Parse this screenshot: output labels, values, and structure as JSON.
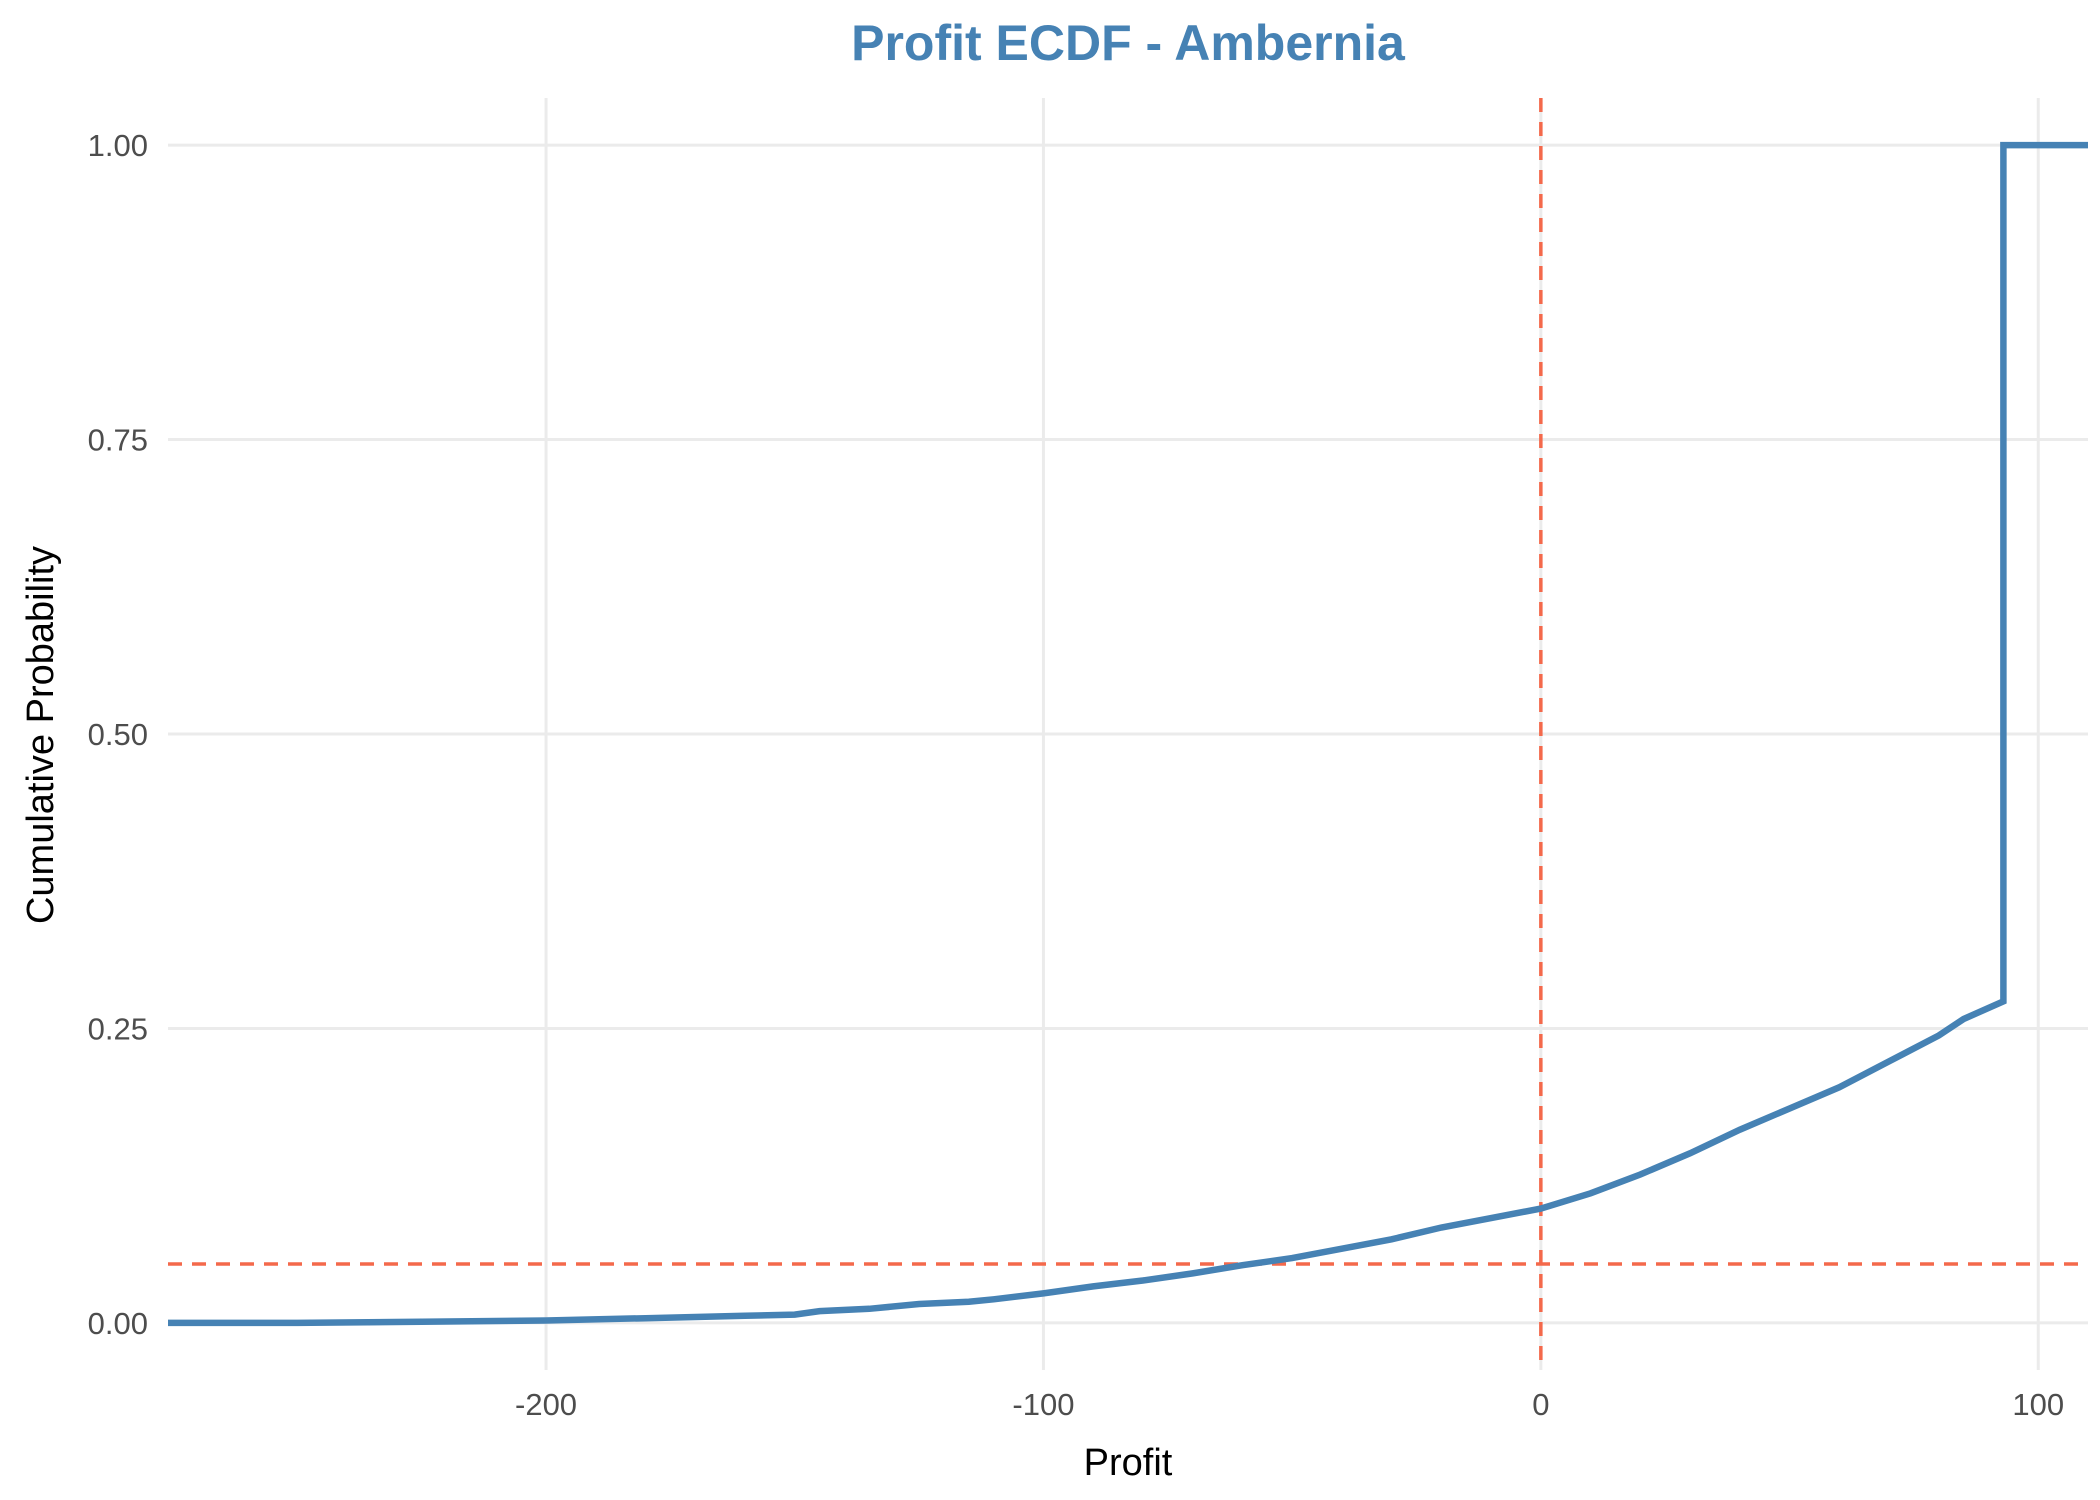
{
  "chart_data": {
    "type": "line",
    "subtype": "ecdf-step",
    "title": "Profit ECDF - Ambernia",
    "xlabel": "Profit",
    "ylabel": "Cumulative Probability",
    "xlim": [
      -276,
      110
    ],
    "ylim": [
      -0.04,
      1.04
    ],
    "x_ticks": [
      -200,
      -100,
      0,
      100
    ],
    "x_tick_labels": [
      "-200",
      "-100",
      "0",
      "100"
    ],
    "y_ticks": [
      0,
      0.25,
      0.5,
      0.75,
      1.0
    ],
    "y_tick_labels": [
      "0.00",
      "0.25",
      "0.50",
      "0.75",
      "1.00"
    ],
    "grid": true,
    "legend": "none",
    "series": [
      {
        "x": [
          -276,
          -250,
          -225,
          -200,
          -180,
          -160,
          -150,
          -145,
          -135,
          -125,
          -115,
          -110,
          -100,
          -90,
          -80,
          -70,
          -60,
          -50,
          -40,
          -30,
          -20,
          -10,
          0,
          10,
          20,
          30,
          40,
          50,
          60,
          70,
          80,
          85,
          93,
          93,
          110
        ],
        "y": [
          0.0,
          0.0,
          0.001,
          0.002,
          0.004,
          0.006,
          0.007,
          0.01,
          0.012,
          0.016,
          0.018,
          0.02,
          0.025,
          0.031,
          0.036,
          0.042,
          0.049,
          0.055,
          0.063,
          0.071,
          0.081,
          0.089,
          0.097,
          0.11,
          0.126,
          0.144,
          0.164,
          0.182,
          0.2,
          0.222,
          0.244,
          0.258,
          0.273,
          1.0,
          1.0
        ]
      }
    ],
    "reference_lines": [
      {
        "orientation": "vertical",
        "value": 0
      },
      {
        "orientation": "horizontal",
        "value": 0.05
      }
    ],
    "colors": {
      "title": "#4682b4",
      "line": "#4682b4",
      "reference": "#f4694b",
      "grid": "#ebebeb"
    }
  }
}
